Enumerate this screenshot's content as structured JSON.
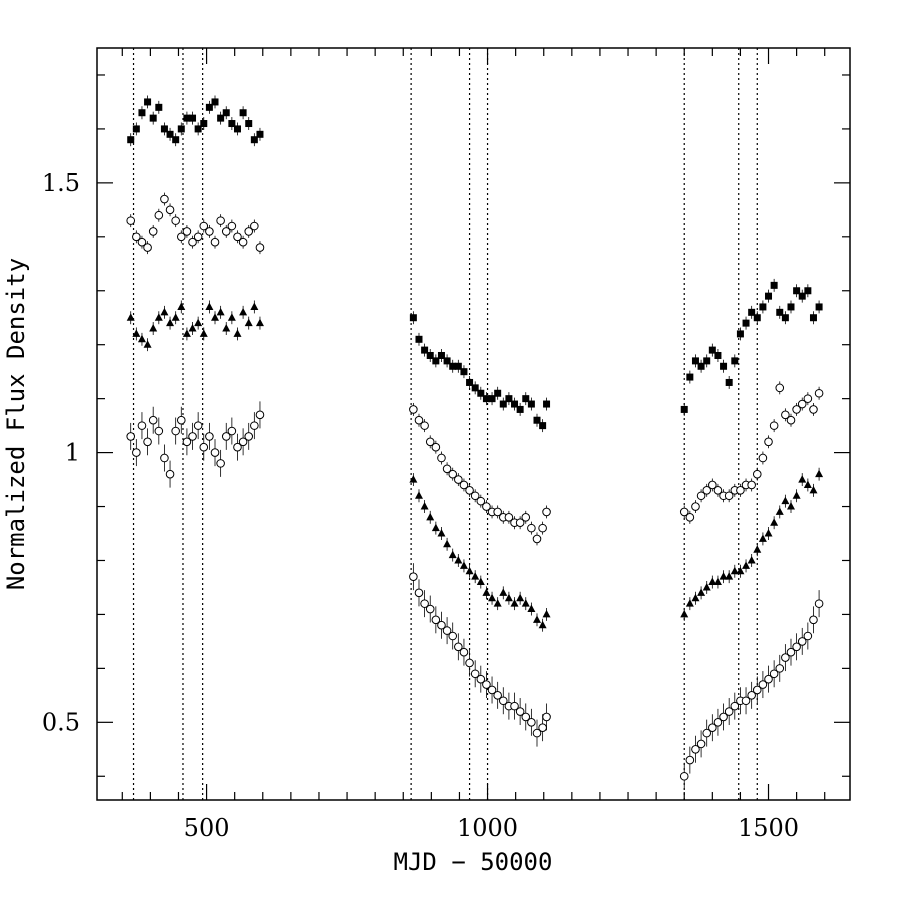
{
  "chart_data": {
    "type": "scatter",
    "title": "",
    "xlabel": "MJD − 50000",
    "ylabel": "Normalized Flux Density",
    "xlim": [
      305,
      1645
    ],
    "ylim": [
      0.356,
      1.75
    ],
    "x_ticks": [
      500,
      1000,
      1500
    ],
    "y_ticks": [
      0.5,
      1,
      1.5
    ],
    "x_tick_labels": [
      "500",
      "1000",
      "1500"
    ],
    "y_tick_labels": [
      "0.5",
      "1",
      "1.5"
    ],
    "grid": false,
    "legend": "none",
    "vertical_reference_lines": [
      370,
      458,
      493,
      864,
      968,
      1000,
      1350,
      1447,
      1480
    ],
    "observation_windows": [
      [
        365,
        600
      ],
      [
        862,
        1110
      ],
      [
        1345,
        1595
      ]
    ],
    "series": [
      {
        "marker": "filled-square",
        "points": [
          [
            365,
            1.58
          ],
          [
            375,
            1.6
          ],
          [
            385,
            1.63
          ],
          [
            395,
            1.65
          ],
          [
            405,
            1.62
          ],
          [
            415,
            1.64
          ],
          [
            425,
            1.6
          ],
          [
            435,
            1.59
          ],
          [
            445,
            1.58
          ],
          [
            455,
            1.6
          ],
          [
            465,
            1.62
          ],
          [
            475,
            1.62
          ],
          [
            485,
            1.6
          ],
          [
            495,
            1.61
          ],
          [
            505,
            1.64
          ],
          [
            515,
            1.65
          ],
          [
            525,
            1.62
          ],
          [
            535,
            1.63
          ],
          [
            545,
            1.61
          ],
          [
            555,
            1.6
          ],
          [
            565,
            1.63
          ],
          [
            575,
            1.61
          ],
          [
            585,
            1.58
          ],
          [
            595,
            1.59
          ],
          [
            868,
            1.25
          ],
          [
            878,
            1.21
          ],
          [
            888,
            1.19
          ],
          [
            898,
            1.18
          ],
          [
            908,
            1.17
          ],
          [
            918,
            1.18
          ],
          [
            928,
            1.17
          ],
          [
            938,
            1.16
          ],
          [
            948,
            1.16
          ],
          [
            958,
            1.15
          ],
          [
            968,
            1.13
          ],
          [
            978,
            1.12
          ],
          [
            988,
            1.11
          ],
          [
            998,
            1.1
          ],
          [
            1008,
            1.1
          ],
          [
            1018,
            1.11
          ],
          [
            1028,
            1.09
          ],
          [
            1038,
            1.1
          ],
          [
            1048,
            1.09
          ],
          [
            1058,
            1.08
          ],
          [
            1068,
            1.1
          ],
          [
            1078,
            1.09
          ],
          [
            1088,
            1.06
          ],
          [
            1098,
            1.05
          ],
          [
            1105,
            1.09
          ],
          [
            1350,
            1.08
          ],
          [
            1360,
            1.14
          ],
          [
            1370,
            1.17
          ],
          [
            1380,
            1.16
          ],
          [
            1390,
            1.17
          ],
          [
            1400,
            1.19
          ],
          [
            1410,
            1.18
          ],
          [
            1420,
            1.16
          ],
          [
            1430,
            1.13
          ],
          [
            1440,
            1.17
          ],
          [
            1450,
            1.22
          ],
          [
            1460,
            1.24
          ],
          [
            1470,
            1.26
          ],
          [
            1480,
            1.25
          ],
          [
            1490,
            1.27
          ],
          [
            1500,
            1.29
          ],
          [
            1510,
            1.31
          ],
          [
            1520,
            1.26
          ],
          [
            1530,
            1.25
          ],
          [
            1540,
            1.27
          ],
          [
            1550,
            1.3
          ],
          [
            1560,
            1.29
          ],
          [
            1570,
            1.3
          ],
          [
            1580,
            1.25
          ],
          [
            1590,
            1.27
          ]
        ]
      },
      {
        "marker": "open-circle",
        "points": [
          [
            365,
            1.43
          ],
          [
            375,
            1.4
          ],
          [
            385,
            1.39
          ],
          [
            395,
            1.38
          ],
          [
            405,
            1.41
          ],
          [
            415,
            1.44
          ],
          [
            425,
            1.47
          ],
          [
            435,
            1.45
          ],
          [
            445,
            1.43
          ],
          [
            455,
            1.4
          ],
          [
            465,
            1.41
          ],
          [
            475,
            1.39
          ],
          [
            485,
            1.4
          ],
          [
            495,
            1.42
          ],
          [
            505,
            1.41
          ],
          [
            515,
            1.39
          ],
          [
            525,
            1.43
          ],
          [
            535,
            1.41
          ],
          [
            545,
            1.42
          ],
          [
            555,
            1.4
          ],
          [
            565,
            1.39
          ],
          [
            575,
            1.41
          ],
          [
            585,
            1.42
          ],
          [
            595,
            1.38
          ],
          [
            868,
            1.08
          ],
          [
            878,
            1.06
          ],
          [
            888,
            1.05
          ],
          [
            898,
            1.02
          ],
          [
            908,
            1.01
          ],
          [
            918,
            0.99
          ],
          [
            928,
            0.97
          ],
          [
            938,
            0.96
          ],
          [
            948,
            0.95
          ],
          [
            958,
            0.94
          ],
          [
            968,
            0.93
          ],
          [
            978,
            0.92
          ],
          [
            988,
            0.91
          ],
          [
            998,
            0.9
          ],
          [
            1008,
            0.89
          ],
          [
            1018,
            0.89
          ],
          [
            1028,
            0.88
          ],
          [
            1038,
            0.88
          ],
          [
            1048,
            0.87
          ],
          [
            1058,
            0.87
          ],
          [
            1068,
            0.88
          ],
          [
            1078,
            0.86
          ],
          [
            1088,
            0.84
          ],
          [
            1098,
            0.86
          ],
          [
            1105,
            0.89
          ],
          [
            1350,
            0.89
          ],
          [
            1360,
            0.88
          ],
          [
            1370,
            0.9
          ],
          [
            1380,
            0.92
          ],
          [
            1390,
            0.93
          ],
          [
            1400,
            0.94
          ],
          [
            1410,
            0.93
          ],
          [
            1420,
            0.92
          ],
          [
            1430,
            0.92
          ],
          [
            1440,
            0.93
          ],
          [
            1450,
            0.93
          ],
          [
            1460,
            0.94
          ],
          [
            1470,
            0.94
          ],
          [
            1480,
            0.96
          ],
          [
            1490,
            0.99
          ],
          [
            1500,
            1.02
          ],
          [
            1510,
            1.05
          ],
          [
            1520,
            1.12
          ],
          [
            1530,
            1.07
          ],
          [
            1540,
            1.06
          ],
          [
            1550,
            1.08
          ],
          [
            1560,
            1.09
          ],
          [
            1570,
            1.1
          ],
          [
            1580,
            1.08
          ],
          [
            1590,
            1.11
          ]
        ]
      },
      {
        "marker": "filled-triangle",
        "points": [
          [
            365,
            1.25
          ],
          [
            375,
            1.22
          ],
          [
            385,
            1.21
          ],
          [
            395,
            1.2
          ],
          [
            405,
            1.23
          ],
          [
            415,
            1.25
          ],
          [
            425,
            1.26
          ],
          [
            435,
            1.24
          ],
          [
            445,
            1.25
          ],
          [
            455,
            1.27
          ],
          [
            465,
            1.22
          ],
          [
            475,
            1.23
          ],
          [
            485,
            1.24
          ],
          [
            495,
            1.22
          ],
          [
            505,
            1.27
          ],
          [
            515,
            1.25
          ],
          [
            525,
            1.26
          ],
          [
            535,
            1.23
          ],
          [
            545,
            1.25
          ],
          [
            555,
            1.22
          ],
          [
            565,
            1.26
          ],
          [
            575,
            1.24
          ],
          [
            585,
            1.27
          ],
          [
            595,
            1.24
          ],
          [
            868,
            0.95
          ],
          [
            878,
            0.92
          ],
          [
            888,
            0.9
          ],
          [
            898,
            0.88
          ],
          [
            908,
            0.86
          ],
          [
            918,
            0.85
          ],
          [
            928,
            0.83
          ],
          [
            938,
            0.81
          ],
          [
            948,
            0.8
          ],
          [
            958,
            0.79
          ],
          [
            968,
            0.78
          ],
          [
            978,
            0.77
          ],
          [
            988,
            0.76
          ],
          [
            998,
            0.74
          ],
          [
            1008,
            0.73
          ],
          [
            1018,
            0.72
          ],
          [
            1028,
            0.74
          ],
          [
            1038,
            0.73
          ],
          [
            1048,
            0.72
          ],
          [
            1058,
            0.73
          ],
          [
            1068,
            0.72
          ],
          [
            1078,
            0.71
          ],
          [
            1088,
            0.69
          ],
          [
            1098,
            0.68
          ],
          [
            1105,
            0.7
          ],
          [
            1350,
            0.7
          ],
          [
            1360,
            0.72
          ],
          [
            1370,
            0.73
          ],
          [
            1380,
            0.74
          ],
          [
            1390,
            0.75
          ],
          [
            1400,
            0.76
          ],
          [
            1410,
            0.76
          ],
          [
            1420,
            0.77
          ],
          [
            1430,
            0.77
          ],
          [
            1440,
            0.78
          ],
          [
            1450,
            0.78
          ],
          [
            1460,
            0.79
          ],
          [
            1470,
            0.8
          ],
          [
            1480,
            0.82
          ],
          [
            1490,
            0.84
          ],
          [
            1500,
            0.85
          ],
          [
            1510,
            0.87
          ],
          [
            1520,
            0.89
          ],
          [
            1530,
            0.91
          ],
          [
            1540,
            0.9
          ],
          [
            1550,
            0.92
          ],
          [
            1560,
            0.95
          ],
          [
            1570,
            0.94
          ],
          [
            1580,
            0.93
          ],
          [
            1590,
            0.96
          ]
        ]
      },
      {
        "marker": "open-circle",
        "points": [
          [
            365,
            1.03
          ],
          [
            375,
            1.0
          ],
          [
            385,
            1.05
          ],
          [
            395,
            1.02
          ],
          [
            405,
            1.06
          ],
          [
            415,
            1.04
          ],
          [
            425,
            0.99
          ],
          [
            435,
            0.96
          ],
          [
            445,
            1.04
          ],
          [
            455,
            1.06
          ],
          [
            465,
            1.02
          ],
          [
            475,
            1.03
          ],
          [
            485,
            1.05
          ],
          [
            495,
            1.01
          ],
          [
            505,
            1.03
          ],
          [
            515,
            1.0
          ],
          [
            525,
            0.98
          ],
          [
            535,
            1.03
          ],
          [
            545,
            1.04
          ],
          [
            555,
            1.01
          ],
          [
            565,
            1.02
          ],
          [
            575,
            1.03
          ],
          [
            585,
            1.05
          ],
          [
            595,
            1.07
          ],
          [
            868,
            0.77
          ],
          [
            878,
            0.74
          ],
          [
            888,
            0.72
          ],
          [
            898,
            0.71
          ],
          [
            908,
            0.69
          ],
          [
            918,
            0.68
          ],
          [
            928,
            0.67
          ],
          [
            938,
            0.66
          ],
          [
            948,
            0.64
          ],
          [
            958,
            0.63
          ],
          [
            968,
            0.61
          ],
          [
            978,
            0.59
          ],
          [
            988,
            0.58
          ],
          [
            998,
            0.57
          ],
          [
            1008,
            0.56
          ],
          [
            1018,
            0.55
          ],
          [
            1028,
            0.54
          ],
          [
            1038,
            0.53
          ],
          [
            1048,
            0.53
          ],
          [
            1058,
            0.52
          ],
          [
            1068,
            0.51
          ],
          [
            1078,
            0.5
          ],
          [
            1088,
            0.48
          ],
          [
            1098,
            0.49
          ],
          [
            1105,
            0.51
          ],
          [
            1350,
            0.4
          ],
          [
            1360,
            0.43
          ],
          [
            1370,
            0.45
          ],
          [
            1380,
            0.46
          ],
          [
            1390,
            0.48
          ],
          [
            1400,
            0.49
          ],
          [
            1410,
            0.5
          ],
          [
            1420,
            0.51
          ],
          [
            1430,
            0.52
          ],
          [
            1440,
            0.53
          ],
          [
            1450,
            0.54
          ],
          [
            1460,
            0.54
          ],
          [
            1470,
            0.55
          ],
          [
            1480,
            0.56
          ],
          [
            1490,
            0.57
          ],
          [
            1500,
            0.58
          ],
          [
            1510,
            0.59
          ],
          [
            1520,
            0.6
          ],
          [
            1530,
            0.62
          ],
          [
            1540,
            0.63
          ],
          [
            1550,
            0.64
          ],
          [
            1560,
            0.65
          ],
          [
            1570,
            0.66
          ],
          [
            1580,
            0.69
          ],
          [
            1590,
            0.72
          ]
        ]
      }
    ]
  }
}
